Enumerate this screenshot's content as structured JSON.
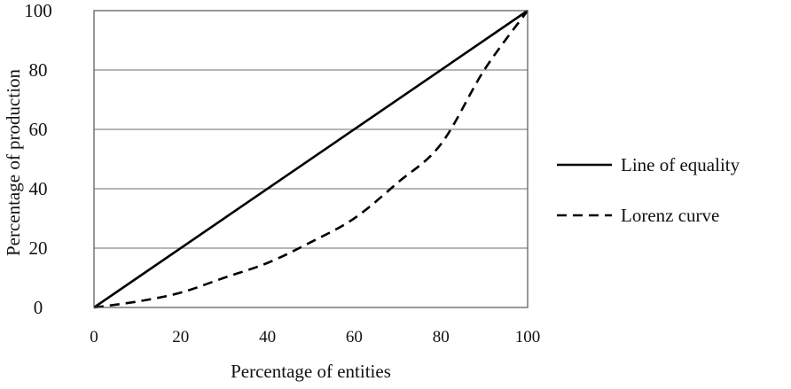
{
  "chart_data": {
    "type": "line",
    "title": "",
    "xlabel": "Percentage of entities",
    "ylabel": "Percentage of production",
    "xlim": [
      0,
      100
    ],
    "ylim": [
      0,
      100
    ],
    "x_ticks": [
      0,
      20,
      40,
      60,
      80,
      100
    ],
    "y_ticks": [
      0,
      20,
      40,
      60,
      80,
      100
    ],
    "x_tick_labels": [
      "0",
      "20",
      "40",
      "60",
      "80",
      "100"
    ],
    "y_tick_labels": [
      "0",
      "20",
      "40",
      "60",
      "80",
      "100"
    ],
    "grid": "horizontal",
    "legend_position": "right",
    "series": [
      {
        "name": "Line of equality",
        "style": "solid",
        "color": "#000000",
        "x": [
          0,
          100
        ],
        "y": [
          0,
          100
        ]
      },
      {
        "name": "Lorenz curve",
        "style": "dashed",
        "color": "#000000",
        "x": [
          0,
          10,
          20,
          30,
          40,
          50,
          60,
          70,
          80,
          90,
          100
        ],
        "y": [
          0,
          2,
          5,
          10,
          15,
          22,
          30,
          42,
          55,
          80,
          100
        ]
      }
    ]
  }
}
